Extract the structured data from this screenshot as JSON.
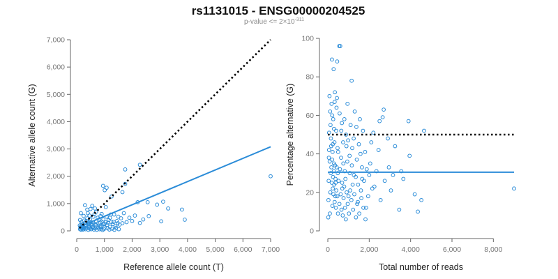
{
  "title": "rs1131015 - ENSG00000204525",
  "subtitle": {
    "prefix": "p-value <= 2×10",
    "exponent": "-311"
  },
  "style": {
    "point_color": "#2b8cd8",
    "fit_color": "#2b8cd8",
    "reference_line_color": "#000000"
  },
  "chart_data": [
    {
      "type": "scatter",
      "xlabel": "Reference allele count (T)",
      "ylabel": "Alternative allele count (G)",
      "xlim": [
        0,
        7000
      ],
      "ylim": [
        0,
        7000
      ],
      "x_ticks": [
        0,
        1000,
        2000,
        3000,
        4000,
        5000,
        6000,
        7000
      ],
      "x_tick_labels": [
        "0",
        "1,000",
        "2,000",
        "3,000",
        "4,000",
        "5,000",
        "6,000",
        "7,000"
      ],
      "y_ticks": [
        0,
        1000,
        2000,
        3000,
        4000,
        5000,
        6000,
        7000
      ],
      "y_tick_labels": [
        "0",
        "1,000",
        "2,000",
        "3,000",
        "4,000",
        "5,000",
        "6,000",
        "7,000"
      ],
      "reference_line": {
        "style": "dotted",
        "x": [
          100,
          7000
        ],
        "y": [
          100,
          7000
        ]
      },
      "fit_line": {
        "style": "solid",
        "x": [
          100,
          7000
        ],
        "y": [
          150,
          3080
        ]
      },
      "points": [
        [
          7000,
          2000
        ],
        [
          1750,
          2250
        ],
        [
          2280,
          2420
        ],
        [
          950,
          1650
        ],
        [
          1080,
          1580
        ],
        [
          1010,
          1490
        ],
        [
          1260,
          1260
        ],
        [
          1650,
          1420
        ],
        [
          1750,
          1720
        ],
        [
          3120,
          1070
        ],
        [
          2560,
          1050
        ],
        [
          2200,
          1050
        ],
        [
          2900,
          960
        ],
        [
          3300,
          820
        ],
        [
          3800,
          780
        ],
        [
          3900,
          410
        ],
        [
          3050,
          350
        ],
        [
          2280,
          290
        ],
        [
          1700,
          650
        ],
        [
          1500,
          520
        ],
        [
          1350,
          600
        ],
        [
          1200,
          480
        ],
        [
          1050,
          870
        ],
        [
          900,
          620
        ],
        [
          850,
          300
        ],
        [
          700,
          700
        ],
        [
          600,
          520
        ],
        [
          500,
          800
        ],
        [
          400,
          650
        ],
        [
          300,
          940
        ],
        [
          250,
          550
        ],
        [
          150,
          650
        ],
        [
          120,
          400
        ],
        [
          180,
          260
        ],
        [
          220,
          150
        ],
        [
          260,
          80
        ],
        [
          300,
          180
        ],
        [
          350,
          360
        ],
        [
          400,
          250
        ],
        [
          450,
          120
        ],
        [
          500,
          320
        ],
        [
          550,
          200
        ],
        [
          600,
          100
        ],
        [
          650,
          260
        ],
        [
          700,
          360
        ],
        [
          750,
          150
        ],
        [
          800,
          420
        ],
        [
          850,
          140
        ],
        [
          900,
          330
        ],
        [
          950,
          250
        ],
        [
          1000,
          120
        ],
        [
          1050,
          320
        ],
        [
          1100,
          220
        ],
        [
          1150,
          400
        ],
        [
          1200,
          150
        ],
        [
          1250,
          330
        ],
        [
          1300,
          250
        ],
        [
          1400,
          170
        ],
        [
          1450,
          360
        ],
        [
          1550,
          230
        ],
        [
          1600,
          460
        ],
        [
          1650,
          280
        ],
        [
          1800,
          320
        ],
        [
          1900,
          480
        ],
        [
          2000,
          360
        ],
        [
          2100,
          560
        ],
        [
          2400,
          420
        ],
        [
          2600,
          540
        ],
        [
          120,
          60
        ],
        [
          140,
          110
        ],
        [
          160,
          40
        ],
        [
          200,
          90
        ],
        [
          230,
          50
        ],
        [
          280,
          120
        ],
        [
          320,
          60
        ],
        [
          360,
          100
        ],
        [
          420,
          40
        ],
        [
          470,
          80
        ],
        [
          520,
          60
        ],
        [
          580,
          140
        ],
        [
          620,
          50
        ],
        [
          680,
          90
        ],
        [
          720,
          40
        ],
        [
          780,
          110
        ],
        [
          820,
          60
        ],
        [
          880,
          80
        ],
        [
          930,
          30
        ],
        [
          980,
          60
        ],
        [
          1120,
          90
        ],
        [
          1180,
          50
        ],
        [
          1280,
          80
        ],
        [
          1360,
          40
        ],
        [
          1420,
          110
        ],
        [
          1520,
          60
        ],
        [
          110,
          200
        ],
        [
          130,
          150
        ],
        [
          170,
          330
        ],
        [
          190,
          120
        ],
        [
          240,
          230
        ],
        [
          270,
          380
        ],
        [
          310,
          290
        ],
        [
          340,
          200
        ],
        [
          380,
          460
        ],
        [
          430,
          300
        ],
        [
          480,
          420
        ],
        [
          540,
          260
        ],
        [
          640,
          610
        ],
        [
          760,
          480
        ],
        [
          860,
          540
        ],
        [
          960,
          420
        ],
        [
          1080,
          520
        ],
        [
          1230,
          600
        ],
        [
          380,
          780
        ],
        [
          460,
          560
        ],
        [
          560,
          920
        ],
        [
          660,
          820
        ],
        [
          420,
          170
        ],
        [
          520,
          230
        ],
        [
          590,
          310
        ],
        [
          690,
          210
        ],
        [
          790,
          290
        ],
        [
          890,
          190
        ],
        [
          1010,
          260
        ],
        [
          1130,
          300
        ],
        [
          1330,
          330
        ],
        [
          1480,
          280
        ]
      ]
    },
    {
      "type": "scatter",
      "xlabel": "Total number of reads",
      "ylabel": "Percentage alternative (G)",
      "xlim": [
        0,
        9000
      ],
      "ylim": [
        0,
        100
      ],
      "x_ticks": [
        0,
        2000,
        4000,
        6000,
        8000
      ],
      "x_tick_labels": [
        "0",
        "2,000",
        "4,000",
        "6,000",
        "8,000"
      ],
      "y_ticks": [
        0,
        20,
        40,
        60,
        80,
        100
      ],
      "y_tick_labels": [
        "0",
        "20",
        "40",
        "60",
        "80",
        "100"
      ],
      "reference_line": {
        "style": "dotted",
        "x": [
          0,
          9000
        ],
        "y": [
          50,
          50
        ]
      },
      "fit_line": {
        "style": "solid",
        "x": [
          0,
          9000
        ],
        "y": [
          30.5,
          30.5
        ]
      },
      "points": [
        [
          9000,
          22
        ],
        [
          4650,
          52
        ],
        [
          4520,
          16
        ],
        [
          4350,
          10
        ],
        [
          4200,
          19
        ],
        [
          3950,
          39
        ],
        [
          3900,
          57
        ],
        [
          3650,
          27
        ],
        [
          3450,
          11
        ],
        [
          3250,
          44
        ],
        [
          3150,
          29
        ],
        [
          2900,
          48
        ],
        [
          2950,
          33
        ],
        [
          2750,
          26
        ],
        [
          2700,
          63
        ],
        [
          2650,
          59
        ],
        [
          2500,
          57
        ],
        [
          2450,
          42
        ],
        [
          2350,
          31
        ],
        [
          2250,
          23
        ],
        [
          2200,
          51
        ],
        [
          2100,
          46
        ],
        [
          2050,
          35
        ],
        [
          2000,
          29
        ],
        [
          1950,
          18
        ],
        [
          1850,
          12
        ],
        [
          1800,
          41
        ],
        [
          1750,
          26
        ],
        [
          1700,
          52
        ],
        [
          1650,
          33
        ],
        [
          1600,
          21
        ],
        [
          1550,
          58
        ],
        [
          1500,
          45
        ],
        [
          1450,
          15
        ],
        [
          1400,
          37
        ],
        [
          1350,
          28
        ],
        [
          1300,
          62
        ],
        [
          1250,
          48
        ],
        [
          1200,
          24
        ],
        [
          1150,
          78
        ],
        [
          1100,
          55
        ],
        [
          1050,
          39
        ],
        [
          1000,
          18
        ],
        [
          950,
          66
        ],
        [
          900,
          44
        ],
        [
          850,
          27
        ],
        [
          800,
          58
        ],
        [
          750,
          35
        ],
        [
          700,
          22
        ],
        [
          650,
          52
        ],
        [
          600,
          96
        ],
        [
          550,
          96
        ],
        [
          500,
          41
        ],
        [
          480,
          30
        ],
        [
          450,
          88
        ],
        [
          420,
          64
        ],
        [
          400,
          52
        ],
        [
          380,
          25
        ],
        [
          360,
          18
        ],
        [
          340,
          72
        ],
        [
          320,
          46
        ],
        [
          300,
          35
        ],
        [
          280,
          84
        ],
        [
          260,
          58
        ],
        [
          240,
          22
        ],
        [
          220,
          13
        ],
        [
          200,
          89
        ],
        [
          180,
          66
        ],
        [
          160,
          44
        ],
        [
          140,
          30
        ],
        [
          120,
          20
        ],
        [
          100,
          9
        ],
        [
          80,
          70
        ],
        [
          60,
          51
        ],
        [
          50,
          38
        ],
        [
          40,
          26
        ],
        [
          30,
          16
        ],
        [
          20,
          7
        ],
        [
          150,
          48
        ],
        [
          170,
          33
        ],
        [
          190,
          25
        ],
        [
          210,
          37
        ],
        [
          230,
          41
        ],
        [
          250,
          28
        ],
        [
          270,
          19
        ],
        [
          290,
          31
        ],
        [
          310,
          24
        ],
        [
          330,
          15
        ],
        [
          350,
          34
        ],
        [
          370,
          27
        ],
        [
          390,
          12
        ],
        [
          410,
          21
        ],
        [
          430,
          33
        ],
        [
          460,
          18
        ],
        [
          490,
          9
        ],
        [
          520,
          26
        ],
        [
          560,
          14
        ],
        [
          590,
          32
        ],
        [
          620,
          19
        ],
        [
          660,
          11
        ],
        [
          690,
          25
        ],
        [
          720,
          8
        ],
        [
          760,
          17
        ],
        [
          790,
          23
        ],
        [
          830,
          12
        ],
        [
          870,
          6
        ],
        [
          910,
          20
        ],
        [
          960,
          14
        ],
        [
          1020,
          9
        ],
        [
          1080,
          21
        ],
        [
          1140,
          16
        ],
        [
          1220,
          11
        ],
        [
          1280,
          19
        ],
        [
          1360,
          7
        ],
        [
          1420,
          14
        ],
        [
          1520,
          9
        ],
        [
          1620,
          17
        ],
        [
          1720,
          12
        ],
        [
          1820,
          6
        ],
        [
          110,
          62
        ],
        [
          130,
          55
        ],
        [
          210,
          60
        ],
        [
          330,
          67
        ],
        [
          440,
          69
        ],
        [
          570,
          61
        ],
        [
          680,
          56
        ],
        [
          880,
          50
        ],
        [
          980,
          47
        ],
        [
          1180,
          43
        ],
        [
          1380,
          54
        ],
        [
          1580,
          40
        ],
        [
          2150,
          22
        ],
        [
          2550,
          16
        ],
        [
          3050,
          21
        ],
        [
          3550,
          31
        ],
        [
          60,
          42
        ],
        [
          90,
          36
        ],
        [
          240,
          45
        ],
        [
          300,
          53
        ],
        [
          470,
          43
        ],
        [
          640,
          38
        ],
        [
          740,
          46
        ],
        [
          820,
          31
        ],
        [
          940,
          36
        ],
        [
          1060,
          30
        ],
        [
          1160,
          34
        ],
        [
          1260,
          29
        ],
        [
          1460,
          24
        ],
        [
          1660,
          27
        ],
        [
          1880,
          32
        ]
      ]
    }
  ]
}
